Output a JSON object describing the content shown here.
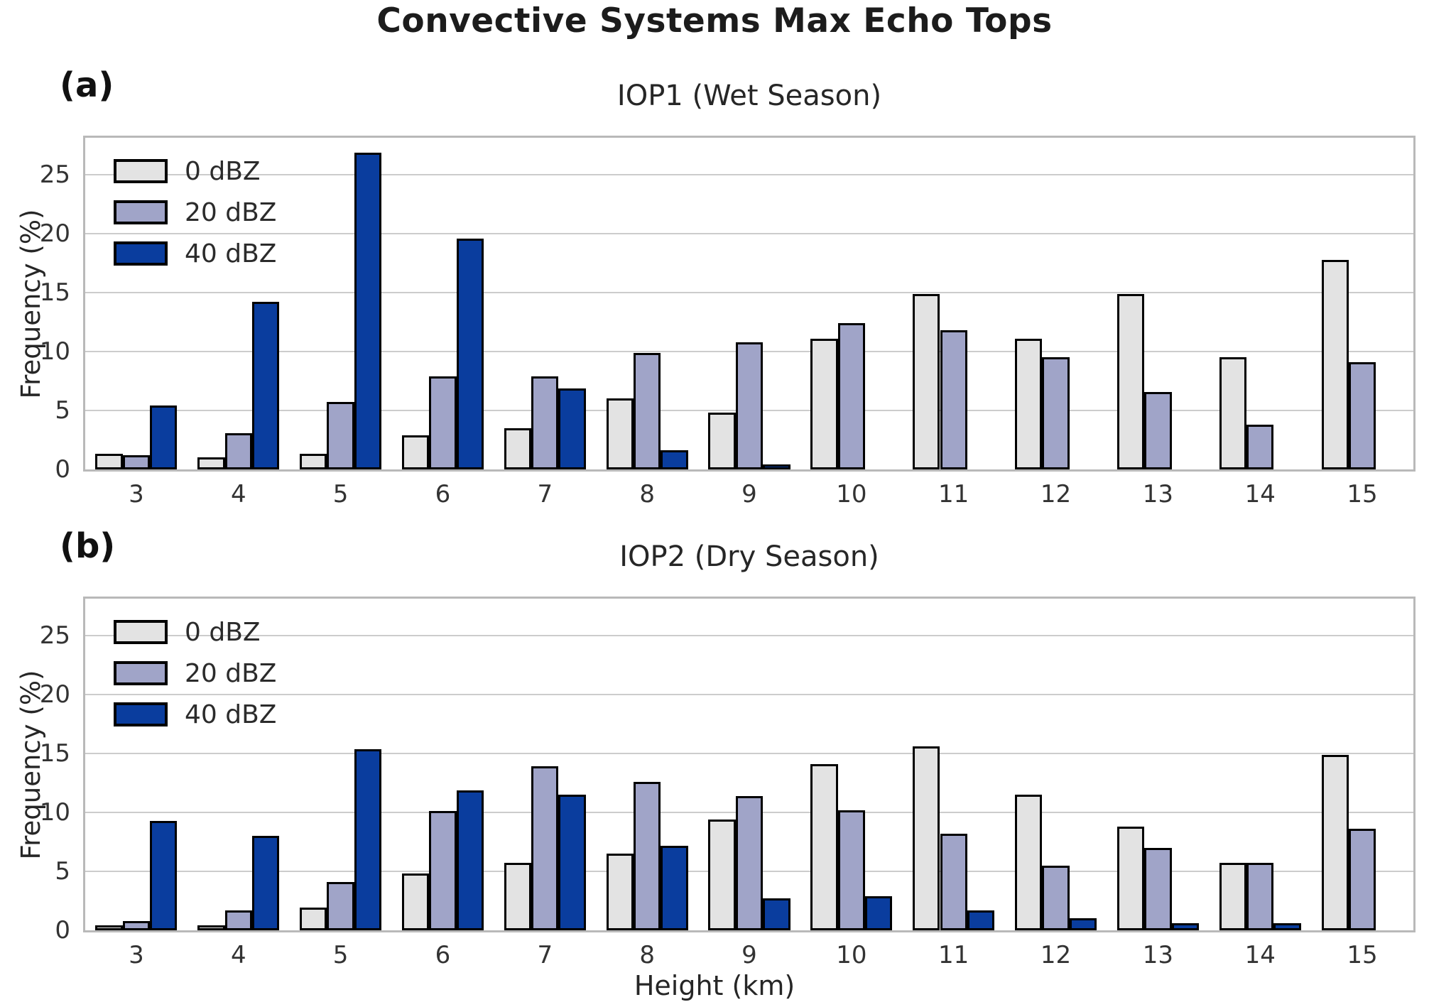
{
  "title": "Convective Systems Max Echo Tops",
  "xlabel": "Height (km)",
  "ylabel": "Frequency (%)",
  "colors": {
    "dbz0_fill": "#e3e3e3",
    "dbz20_fill": "#a0a4c8",
    "dbz40_fill": "#0a3d9e",
    "bar_edge": "#000000",
    "gridline": "#cccccc",
    "spine": "#b9b9b9",
    "title_text": "#1c1c1c",
    "tick_text": "#333333"
  },
  "yticks": [
    0,
    5,
    10,
    15,
    20,
    25
  ],
  "chart_data": [
    {
      "type": "bar",
      "panel_label": "(a)",
      "title": "IOP1 (Wet Season)",
      "categories": [
        3,
        4,
        5,
        6,
        7,
        8,
        9,
        10,
        11,
        12,
        13,
        14,
        15
      ],
      "series": [
        {
          "name": "0 dBZ",
          "color_key": "dbz0_fill",
          "values": [
            1.3,
            1.0,
            1.3,
            2.9,
            3.5,
            6.0,
            4.8,
            11.1,
            14.9,
            11.1,
            14.9,
            9.5,
            17.8
          ]
        },
        {
          "name": "20 dBZ",
          "color_key": "dbz20_fill",
          "values": [
            1.2,
            3.1,
            5.7,
            7.9,
            7.9,
            9.9,
            10.8,
            12.4,
            11.8,
            9.5,
            6.6,
            3.8,
            9.1
          ]
        },
        {
          "name": "40 dBZ",
          "color_key": "dbz40_fill",
          "values": [
            5.4,
            14.2,
            26.9,
            19.6,
            6.9,
            1.6,
            0.4,
            0,
            0,
            0,
            0,
            0,
            0
          ]
        }
      ],
      "ylabel": "Frequency (%)",
      "ylim": [
        0,
        28.15
      ],
      "grid": true,
      "legend_position": "upper left"
    },
    {
      "type": "bar",
      "panel_label": "(b)",
      "title": "IOP2 (Dry Season)",
      "categories": [
        3,
        4,
        5,
        6,
        7,
        8,
        9,
        10,
        11,
        12,
        13,
        14,
        15
      ],
      "series": [
        {
          "name": "0 dBZ",
          "color_key": "dbz0_fill",
          "values": [
            0.4,
            0.4,
            1.9,
            4.8,
            5.7,
            6.5,
            9.4,
            14.1,
            15.6,
            11.5,
            8.8,
            5.7,
            14.9
          ]
        },
        {
          "name": "20 dBZ",
          "color_key": "dbz20_fill",
          "values": [
            0.8,
            1.7,
            4.1,
            10.1,
            13.9,
            12.6,
            11.4,
            10.2,
            8.2,
            5.5,
            7.0,
            5.7,
            8.6
          ]
        },
        {
          "name": "40 dBZ",
          "color_key": "dbz40_fill",
          "values": [
            9.3,
            8.0,
            15.4,
            11.9,
            11.5,
            7.2,
            2.7,
            2.9,
            1.7,
            1.0,
            0.6,
            0.6,
            0
          ]
        }
      ],
      "ylabel": "Frequency (%)",
      "ylim": [
        0,
        28.15
      ],
      "grid": true,
      "legend_position": "upper left"
    }
  ]
}
